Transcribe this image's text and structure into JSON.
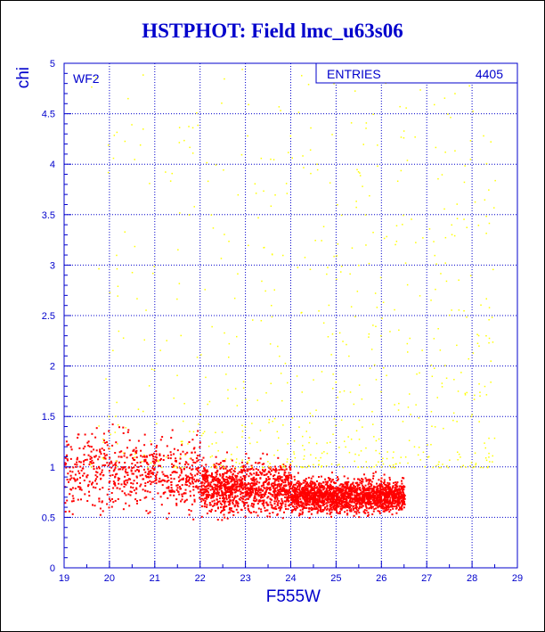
{
  "chart_data": {
    "type": "scatter",
    "title": "HSTPHOT: Field lmc_u63s06",
    "xlabel": "F555W",
    "ylabel": "chi",
    "xlim": [
      19,
      29
    ],
    "ylim": [
      0,
      5
    ],
    "x_ticks": [
      "19",
      "20",
      "21",
      "22",
      "23",
      "24",
      "25",
      "26",
      "27",
      "28",
      "29"
    ],
    "y_ticks": [
      "0",
      "0.5",
      "1",
      "1.5",
      "2",
      "2.5",
      "3",
      "3.5",
      "4",
      "4.5",
      "5"
    ],
    "grid": true,
    "panel_label": "WF2",
    "stats_box": {
      "label": "ENTRIES",
      "value": "4405",
      "placement": "top-right"
    },
    "series_colors": {
      "main": "#ff0000",
      "outliers": "#ffff00"
    },
    "axis_color": "#0000cc",
    "main_clumps": [
      {
        "x_range": [
          19.0,
          22.0
        ],
        "y_center": 0.95,
        "y_spread": 0.3,
        "count": 650
      },
      {
        "x_range": [
          22.0,
          24.0
        ],
        "y_center": 0.8,
        "y_spread": 0.2,
        "count": 1100
      },
      {
        "x_range": [
          24.0,
          26.5
        ],
        "y_center": 0.72,
        "y_spread": 0.13,
        "count": 2000
      }
    ],
    "outlier_region": {
      "x_range": [
        19.5,
        28.5
      ],
      "y_range": [
        1.0,
        5.0
      ],
      "count": 655
    }
  }
}
